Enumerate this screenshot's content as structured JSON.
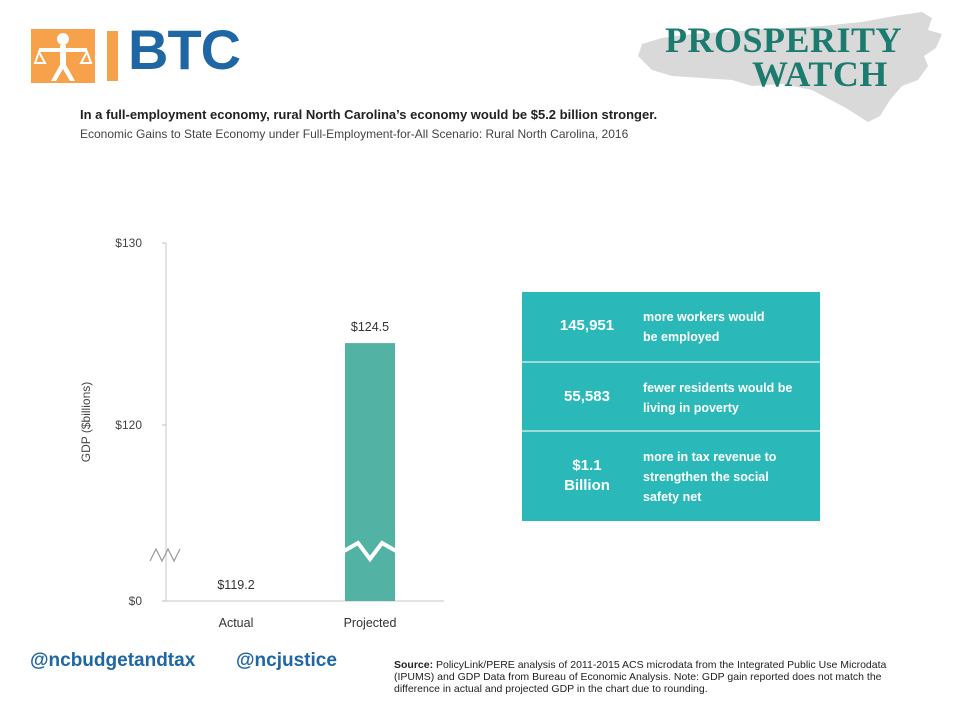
{
  "logo": {
    "text": "BTC",
    "icon": "person-balance-icon"
  },
  "brand": {
    "line1": "PROSPERITY",
    "line2": "WATCH",
    "map_icon": "north-carolina-map-icon"
  },
  "headline": "In a full-employment economy, rural North Carolina’s economy would be $5.2 billion stronger.",
  "subheadline": "Economic Gains to State Economy under Full-Employment-for-All Scenario: Rural North Carolina, 2016",
  "chart_data": {
    "type": "bar",
    "title": "",
    "categories": [
      "Actual",
      "Projected"
    ],
    "values": [
      119.2,
      124.5
    ],
    "value_labels": [
      "$119.2",
      "$124.5"
    ],
    "colors": [
      "#b3b3b3",
      "#52b2a3"
    ],
    "ylabel": "GDP ($billions)",
    "yticks": [
      {
        "value": 0,
        "label": "$0"
      },
      {
        "value": 120,
        "label": "$120"
      },
      {
        "value": 130,
        "label": "$130"
      }
    ],
    "ylim": [
      0,
      130
    ],
    "axis_break": true,
    "grid": false,
    "legend": "none"
  },
  "stats": {
    "background": "#2bb8b8",
    "items": [
      {
        "value": "145,951",
        "text_lines": [
          "more workers would",
          "be employed"
        ]
      },
      {
        "value": "55,583",
        "text_lines": [
          "fewer residents would be",
          "living in poverty"
        ]
      },
      {
        "value_lines": [
          "$1.1",
          "Billion"
        ],
        "text_lines": [
          "more in tax revenue to",
          "strengthen the social",
          "safety net"
        ]
      }
    ]
  },
  "social": {
    "handle1": "@ncbudgetandtax",
    "handle2": "@ncjustice"
  },
  "source": {
    "label": "Source:",
    "text": " PolicyLink/PERE analysis of 2011-2015 ACS microdata from the Integrated Public Use Microdata (IPUMS) and GDP Data from Bureau of Economic Analysis. Note: GDP gain reported does not match the difference in actual and projected GDP in the chart due to rounding."
  }
}
